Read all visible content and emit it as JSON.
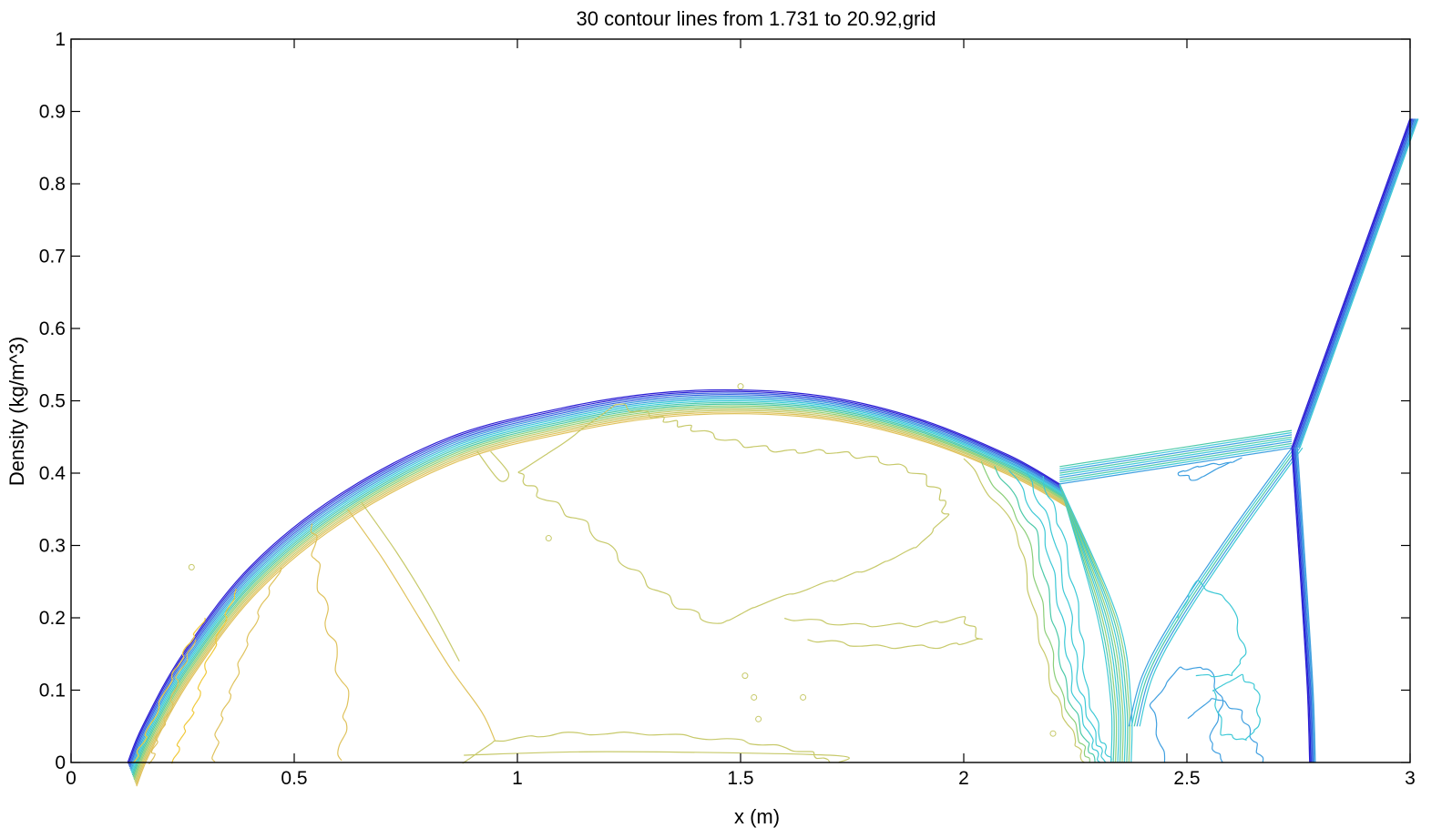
{
  "chart_data": {
    "type": "contour",
    "title": "30 contour lines from 1.731 to 20.92,grid",
    "xlabel": "x (m)",
    "ylabel": "Density (kg/m^3)",
    "xlim": [
      0,
      3
    ],
    "ylim": [
      0,
      1
    ],
    "x_ticks": [
      0,
      0.5,
      1,
      1.5,
      2,
      2.5,
      3
    ],
    "x_tick_labels": [
      "0",
      "0.5",
      "1",
      "1.5",
      "2",
      "2.5",
      "3"
    ],
    "y_ticks": [
      0,
      0.1,
      0.2,
      0.3,
      0.4,
      0.5,
      0.6,
      0.7,
      0.8,
      0.9,
      1
    ],
    "y_tick_labels": [
      "0",
      "0.1",
      "0.2",
      "0.3",
      "0.4",
      "0.5",
      "0.6",
      "0.7",
      "0.8",
      "0.9",
      "1"
    ],
    "grid": false,
    "contour_levels": {
      "count": 30,
      "min": 1.731,
      "max": 20.92
    },
    "colormap": [
      "#2b1fd4",
      "#3a64e0",
      "#3f9fe0",
      "#3ec9d6",
      "#4cc9a8",
      "#8ccf7a",
      "#c7c96a",
      "#dfc25c",
      "#f0c93a"
    ],
    "features": {
      "bow_shock": [
        [
          0.127,
          0
        ],
        [
          0.16,
          0.05
        ],
        [
          0.25,
          0.15
        ],
        [
          0.4,
          0.27
        ],
        [
          0.6,
          0.37
        ],
        [
          0.85,
          0.45
        ],
        [
          1.1,
          0.49
        ],
        [
          1.3,
          0.51
        ],
        [
          1.5,
          0.515
        ],
        [
          1.7,
          0.505
        ],
        [
          1.9,
          0.475
        ],
        [
          2.1,
          0.425
        ],
        [
          2.215,
          0.385
        ]
      ],
      "triple_point_1": [
        2.215,
        0.385
      ],
      "triple_point_2": [
        2.735,
        0.435
      ],
      "slip_line": [
        [
          2.215,
          0.385
        ],
        [
          2.735,
          0.435
        ]
      ],
      "reflected_shock": [
        [
          2.215,
          0.385
        ],
        [
          2.3,
          0.2
        ],
        [
          2.33,
          0.08
        ],
        [
          2.33,
          0
        ]
      ],
      "mach_stem": [
        [
          2.735,
          0.435
        ],
        [
          2.755,
          0.25
        ],
        [
          2.77,
          0.1
        ],
        [
          2.775,
          0
        ]
      ],
      "incident_shock": [
        [
          2.735,
          0.435
        ],
        [
          3.0,
          0.89
        ]
      ]
    }
  }
}
